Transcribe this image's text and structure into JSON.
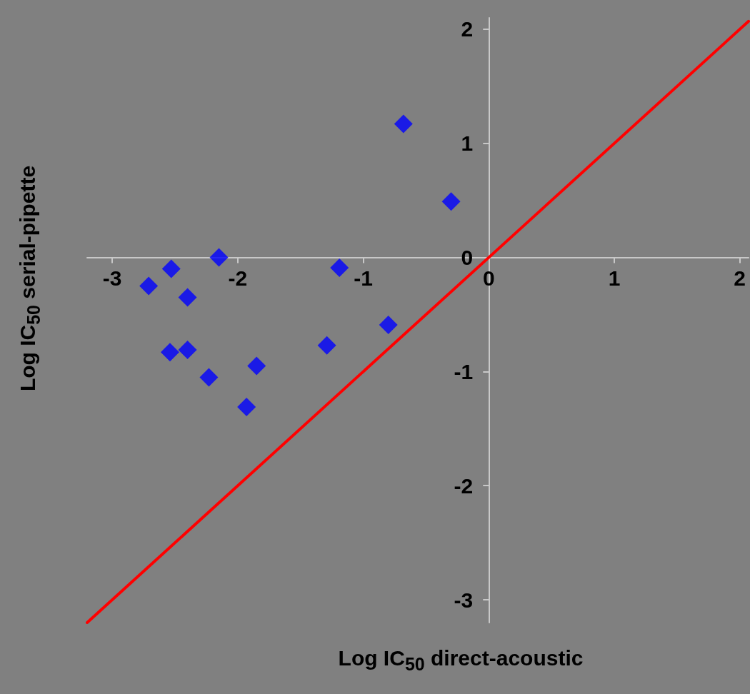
{
  "chart_data": {
    "type": "scatter",
    "xlabel": "Log IC$_{50}$ direct-acoustic",
    "ylabel": "Log IC$_{50}$ serial-pipette",
    "xlim": [
      -3.2,
      2.07
    ],
    "ylim": [
      -3.2,
      2.1
    ],
    "xticks": [
      -3,
      -2,
      -1,
      0,
      1,
      2
    ],
    "yticks": [
      -3,
      -2,
      -1,
      0,
      1,
      2
    ],
    "marker": "diamond",
    "grid": false,
    "series": [
      {
        "color": "#0000ff",
        "x": [
          -0.68,
          -0.3,
          -2.15,
          -2.53,
          -1.19,
          -2.71,
          -2.4,
          -0.8,
          -2.54,
          -2.4,
          -1.29,
          -1.85,
          -2.23,
          -1.93
        ],
        "values": [
          1.17,
          0.49,
          0.0,
          -0.1,
          -0.09,
          -0.25,
          -0.35,
          -0.59,
          -0.83,
          -0.81,
          -0.77,
          -0.95,
          -1.05,
          -1.31
        ]
      },
      {
        "type": "line",
        "color": "#ff0000",
        "marker": "none",
        "x": [
          -3.2,
          2.07
        ],
        "values": [
          -3.2,
          2.07
        ]
      }
    ]
  }
}
